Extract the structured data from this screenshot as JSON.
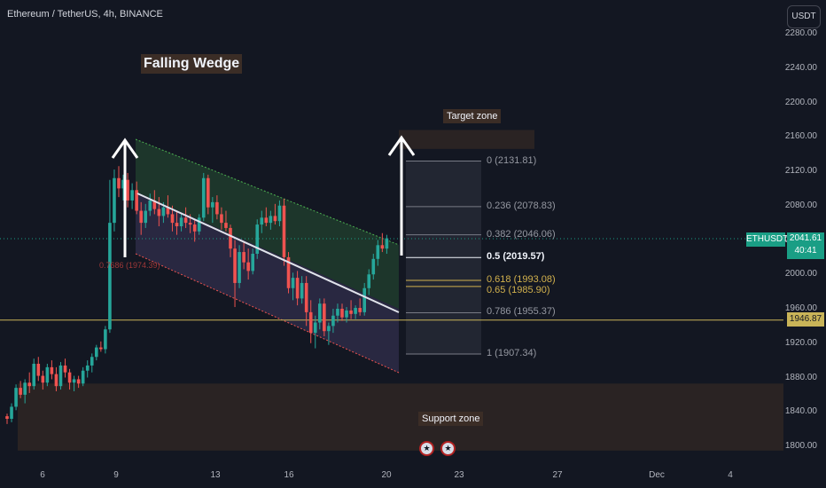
{
  "header": {
    "title": "Ethereum / TetherUS, 4h, BINANCE",
    "currency_button": "USDT"
  },
  "annotations": {
    "pattern_label": "Falling Wedge",
    "target_label": "Target zone",
    "support_label": "Support zone",
    "partial_fib_label": "0.7686 (1974.39)"
  },
  "price_tags": {
    "symbol": "ETHUSDT",
    "last_price": "2041.61",
    "countdown": "40:41",
    "level_price": "1946.87"
  },
  "fib_levels": [
    {
      "label": "0 (2131.81)",
      "price": 2131.81
    },
    {
      "label": "0.236 (2078.83)",
      "price": 2078.83
    },
    {
      "label": "0.382 (2046.06)",
      "price": 2046.06
    },
    {
      "label": "0.5 (2019.57)",
      "price": 2019.57
    },
    {
      "label": "0.618 (1993.08)",
      "price": 1993.08
    },
    {
      "label": "0.65 (1985.90)",
      "price": 1985.9
    },
    {
      "label": "0.786 (1955.37)",
      "price": 1955.37
    },
    {
      "label": "1 (1907.34)",
      "price": 1907.34
    }
  ],
  "colors": {
    "background": "#131722",
    "up": "#26a69a",
    "down": "#ef5350",
    "wedge_upper_fill": "#1f3a2c",
    "wedge_lower_fill": "#2c2a45",
    "zone_fill": "#2a2323",
    "level_line": "#c9b458",
    "accent": "#1a9e85"
  },
  "chart_data": {
    "type": "candlestick",
    "title": "Ethereum / TetherUS, 4h, BINANCE",
    "ylim": [
      1780,
      2290
    ],
    "y_ticks": [
      "2280.00",
      "2240.00",
      "2200.00",
      "2160.00",
      "2120.00",
      "2080.00",
      "2040.00",
      "2000.00",
      "1960.00",
      "1920.00",
      "1880.00",
      "1840.00",
      "1800.00"
    ],
    "x_ticks": [
      "6",
      "9",
      "13",
      "16",
      "20",
      "23",
      "27",
      "Dec",
      "4"
    ],
    "last_price": 2041.61,
    "horizontal_level": 1946.87,
    "target_zone": [
      2146,
      2168
    ],
    "support_zone": [
      1795,
      1873
    ],
    "candles": [
      [
        1835,
        1838,
        1826,
        1832
      ],
      [
        1832,
        1850,
        1828,
        1846
      ],
      [
        1846,
        1872,
        1842,
        1868
      ],
      [
        1868,
        1876,
        1856,
        1860
      ],
      [
        1860,
        1878,
        1850,
        1874
      ],
      [
        1874,
        1886,
        1862,
        1870
      ],
      [
        1870,
        1902,
        1866,
        1896
      ],
      [
        1896,
        1904,
        1876,
        1882
      ],
      [
        1882,
        1888,
        1866,
        1874
      ],
      [
        1874,
        1896,
        1870,
        1892
      ],
      [
        1892,
        1900,
        1878,
        1884
      ],
      [
        1884,
        1892,
        1864,
        1870
      ],
      [
        1870,
        1898,
        1866,
        1894
      ],
      [
        1894,
        1902,
        1880,
        1886
      ],
      [
        1886,
        1890,
        1866,
        1874
      ],
      [
        1874,
        1882,
        1864,
        1878
      ],
      [
        1878,
        1882,
        1868,
        1873
      ],
      [
        1873,
        1892,
        1870,
        1888
      ],
      [
        1888,
        1900,
        1880,
        1894
      ],
      [
        1894,
        1908,
        1886,
        1904
      ],
      [
        1904,
        1918,
        1900,
        1915
      ],
      [
        1915,
        1922,
        1910,
        1913
      ],
      [
        1913,
        1940,
        1908,
        1936
      ],
      [
        1936,
        2110,
        1932,
        2060
      ],
      [
        2060,
        2122,
        2050,
        2112
      ],
      [
        2112,
        2126,
        2090,
        2100
      ],
      [
        2100,
        2116,
        2086,
        2110
      ],
      [
        2110,
        2118,
        2078,
        2086
      ],
      [
        2086,
        2106,
        2076,
        2098
      ],
      [
        2098,
        2108,
        2070,
        2074
      ],
      [
        2074,
        2084,
        2046,
        2060
      ],
      [
        2060,
        2082,
        2054,
        2074
      ],
      [
        2074,
        2094,
        2068,
        2086
      ],
      [
        2086,
        2098,
        2070,
        2076
      ],
      [
        2076,
        2090,
        2056,
        2068
      ],
      [
        2068,
        2084,
        2060,
        2078
      ],
      [
        2078,
        2092,
        2066,
        2070
      ],
      [
        2070,
        2080,
        2050,
        2060
      ],
      [
        2060,
        2074,
        2046,
        2056
      ],
      [
        2056,
        2072,
        2050,
        2066
      ],
      [
        2066,
        2078,
        2054,
        2060
      ],
      [
        2060,
        2070,
        2048,
        2058
      ],
      [
        2058,
        2064,
        2038,
        2050
      ],
      [
        2050,
        2070,
        2046,
        2066
      ],
      [
        2066,
        2118,
        2062,
        2112
      ],
      [
        2112,
        2116,
        2070,
        2078
      ],
      [
        2078,
        2090,
        2060,
        2084
      ],
      [
        2084,
        2092,
        2064,
        2070
      ],
      [
        2070,
        2078,
        2052,
        2060
      ],
      [
        2060,
        2074,
        2050,
        2054
      ],
      [
        2054,
        2058,
        2020,
        2030
      ],
      [
        2030,
        2040,
        1962,
        1990
      ],
      [
        1990,
        2034,
        1984,
        2026
      ],
      [
        2026,
        2038,
        2006,
        2014
      ],
      [
        2014,
        2030,
        1994,
        2004
      ],
      [
        2004,
        2030,
        2000,
        2024
      ],
      [
        2024,
        2064,
        2018,
        2058
      ],
      [
        2058,
        2074,
        2048,
        2066
      ],
      [
        2066,
        2078,
        2056,
        2060
      ],
      [
        2060,
        2074,
        2052,
        2068
      ],
      [
        2068,
        2082,
        2058,
        2062
      ],
      [
        2062,
        2086,
        2056,
        2080
      ],
      [
        2080,
        2088,
        2010,
        2020
      ],
      [
        2020,
        2026,
        1978,
        1984
      ],
      [
        1984,
        2002,
        1970,
        1996
      ],
      [
        1996,
        2004,
        1964,
        1972
      ],
      [
        1972,
        1998,
        1966,
        1990
      ],
      [
        1990,
        1998,
        1940,
        1956
      ],
      [
        1956,
        1970,
        1920,
        1932
      ],
      [
        1932,
        1952,
        1914,
        1944
      ],
      [
        1944,
        1972,
        1936,
        1966
      ],
      [
        1966,
        1972,
        1928,
        1934
      ],
      [
        1934,
        1944,
        1918,
        1940
      ],
      [
        1940,
        1960,
        1932,
        1952
      ],
      [
        1952,
        1966,
        1944,
        1960
      ],
      [
        1960,
        1966,
        1946,
        1950
      ],
      [
        1950,
        1962,
        1944,
        1958
      ],
      [
        1958,
        1970,
        1948,
        1954
      ],
      [
        1954,
        1964,
        1948,
        1961
      ],
      [
        1961,
        1972,
        1952,
        1956
      ],
      [
        1956,
        1990,
        1952,
        1984
      ],
      [
        1984,
        2006,
        1976,
        2000
      ],
      [
        2000,
        2024,
        1994,
        2018
      ],
      [
        2018,
        2040,
        2010,
        2034
      ],
      [
        2034,
        2048,
        2026,
        2030
      ],
      [
        2030,
        2046,
        2024,
        2042
      ]
    ]
  }
}
